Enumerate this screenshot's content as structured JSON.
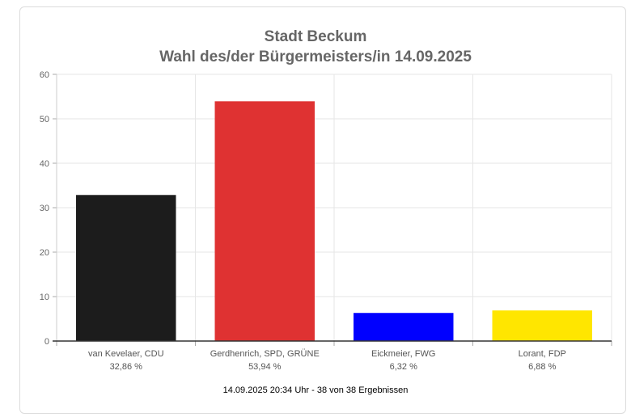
{
  "chart_data": {
    "type": "bar",
    "title": "Stadt Beckum",
    "subtitle": "Wahl des/der Bürgermeisters/in 14.09.2025",
    "categories": [
      "van Kevelaer, CDU",
      "Gerdhenrich, SPD, GRÜNE",
      "Eickmeier, FWG",
      "Lorant, FDP"
    ],
    "value_labels": [
      "32,86 %",
      "53,94 %",
      "6,32 %",
      "6,88 %"
    ],
    "values": [
      32.86,
      53.94,
      6.32,
      6.88
    ],
    "colors": [
      "#1c1c1c",
      "#df3232",
      "#0000ff",
      "#ffe600"
    ],
    "ylim": [
      0,
      60
    ],
    "yticks": [
      0,
      10,
      20,
      30,
      40,
      50,
      60
    ],
    "grid": true,
    "legend": "none"
  },
  "footer": "14.09.2025 20:34 Uhr - 38 von 38 Ergebnissen"
}
